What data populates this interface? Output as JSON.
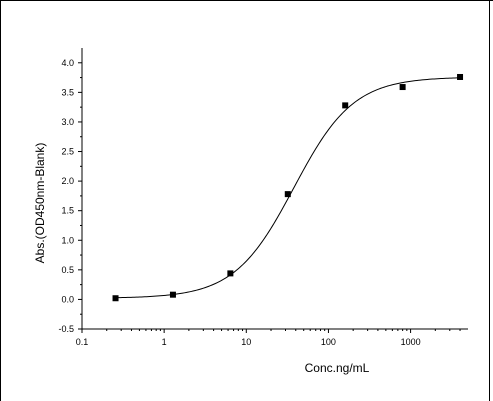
{
  "chart_data": {
    "type": "scatter",
    "title": "",
    "xlabel": "Conc.ng/mL",
    "ylabel": "Abs.(OD450nm-Blank)",
    "x_scale": "log",
    "xlim": [
      0.1,
      5000
    ],
    "ylim": [
      -0.5,
      4.25
    ],
    "grid": false,
    "legend": "none",
    "x_ticks": [
      {
        "value": 0.1,
        "label": "0.1"
      },
      {
        "value": 1,
        "label": "1"
      },
      {
        "value": 10,
        "label": "10"
      },
      {
        "value": 100,
        "label": "100"
      },
      {
        "value": 1000,
        "label": "1000"
      }
    ],
    "y_ticks": [
      {
        "value": -0.5,
        "label": "-0.5"
      },
      {
        "value": 0.0,
        "label": "0.0"
      },
      {
        "value": 0.5,
        "label": "0.5"
      },
      {
        "value": 1.0,
        "label": "1.0"
      },
      {
        "value": 1.5,
        "label": "1.5"
      },
      {
        "value": 2.0,
        "label": "2.0"
      },
      {
        "value": 2.5,
        "label": "2.5"
      },
      {
        "value": 3.0,
        "label": "3.0"
      },
      {
        "value": 3.5,
        "label": "3.5"
      },
      {
        "value": 4.0,
        "label": "4.0"
      }
    ],
    "series": [
      {
        "type": "scatter",
        "marker": "square",
        "color": "#000000",
        "x": [
          0.256,
          1.28,
          6.4,
          32,
          160,
          800,
          4000
        ],
        "y": [
          0.02,
          0.08,
          0.44,
          1.78,
          3.28,
          3.59,
          3.76
        ]
      }
    ],
    "fit": {
      "type": "4PL",
      "color": "#000000",
      "bottom": 0.02,
      "top": 3.76,
      "ec50": 38,
      "hill": 1.2
    }
  }
}
